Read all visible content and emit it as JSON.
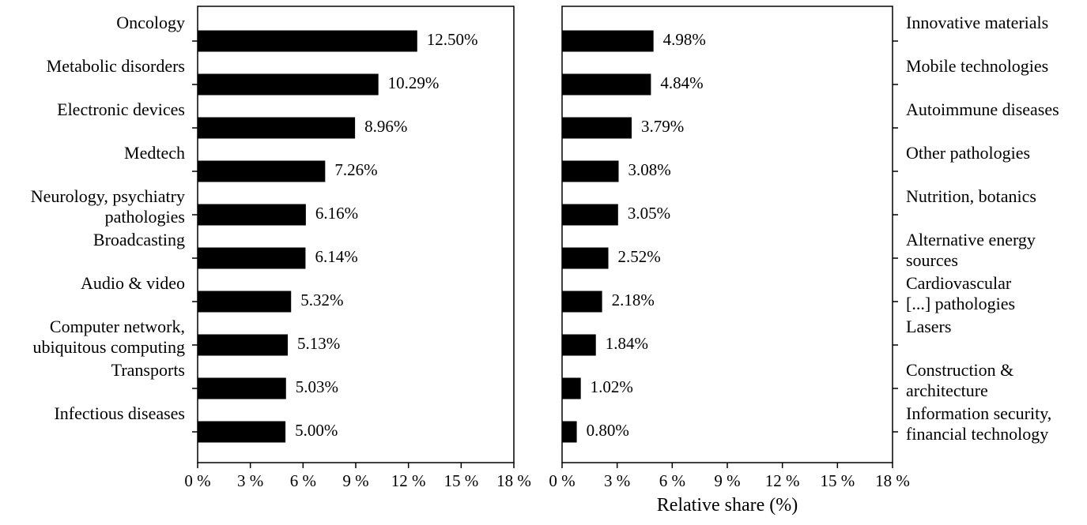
{
  "chart_data": [
    {
      "type": "bar",
      "orientation": "horizontal",
      "categories": [
        "Oncology",
        "Metabolic disorders",
        "Electronic devices",
        "Medtech",
        "Neurology, psychiatry pathologies",
        "Broadcasting",
        "Audio & video",
        "Computer network, ubiquitous computing",
        "Transports",
        "Infectious diseases"
      ],
      "category_lines": [
        [
          "Oncology"
        ],
        [
          "Metabolic disorders"
        ],
        [
          "Electronic devices"
        ],
        [
          "Medtech"
        ],
        [
          "Neurology, psychiatry",
          "pathologies"
        ],
        [
          "Broadcasting"
        ],
        [
          "Audio & video"
        ],
        [
          "Computer network,",
          "ubiquitous computing"
        ],
        [
          "Transports"
        ],
        [
          "Infectious diseases"
        ]
      ],
      "values": [
        12.5,
        10.29,
        8.96,
        7.26,
        6.16,
        6.14,
        5.32,
        5.13,
        5.03,
        5.0
      ],
      "value_labels": [
        "12.50%",
        "10.29%",
        "8.96%",
        "7.26%",
        "6.16%",
        "6.14%",
        "5.32%",
        "5.13%",
        "5.03%",
        "5.00%"
      ],
      "xlim": [
        0,
        18
      ],
      "xticks": [
        0,
        3,
        6,
        9,
        12,
        15,
        18
      ],
      "xtick_labels": [
        "0 %",
        "3 %",
        "6 %",
        "9 %",
        "12 %",
        "15 %",
        "18 %"
      ],
      "xlabel": "",
      "category_axis_side": "left",
      "bar_color": "#000000",
      "grid": false
    },
    {
      "type": "bar",
      "orientation": "horizontal",
      "categories": [
        "Innovative materials",
        "Mobile technologies",
        "Autoimmune diseases",
        "Other pathologies",
        "Nutrition, botanics",
        "Alternative energy sources",
        "Cardiovascular [...] pathologies",
        "Lasers",
        "Construction & architecture",
        "Information security, financial technology"
      ],
      "category_lines": [
        [
          "Innovative materials"
        ],
        [
          "Mobile technologies"
        ],
        [
          "Autoimmune diseases"
        ],
        [
          "Other pathologies"
        ],
        [
          "Nutrition, botanics"
        ],
        [
          "Alternative energy",
          "sources"
        ],
        [
          "Cardiovascular",
          "[...] pathologies"
        ],
        [
          "Lasers"
        ],
        [
          "Construction &",
          "architecture"
        ],
        [
          "Information security,",
          "financial technology"
        ]
      ],
      "values": [
        4.98,
        4.84,
        3.79,
        3.08,
        3.05,
        2.52,
        2.18,
        1.84,
        1.02,
        0.8
      ],
      "value_labels": [
        "4.98%",
        "4.84%",
        "3.79%",
        "3.08%",
        "3.05%",
        "2.52%",
        "2.18%",
        "1.84%",
        "1.02%",
        "0.80%"
      ],
      "xlim": [
        0,
        18
      ],
      "xticks": [
        0,
        3,
        6,
        9,
        12,
        15,
        18
      ],
      "xtick_labels": [
        "0 %",
        "3 %",
        "6 %",
        "9 %",
        "12 %",
        "15 %",
        "18 %"
      ],
      "xlabel": "Relative share (%)",
      "category_axis_side": "right",
      "bar_color": "#000000",
      "grid": false
    }
  ]
}
